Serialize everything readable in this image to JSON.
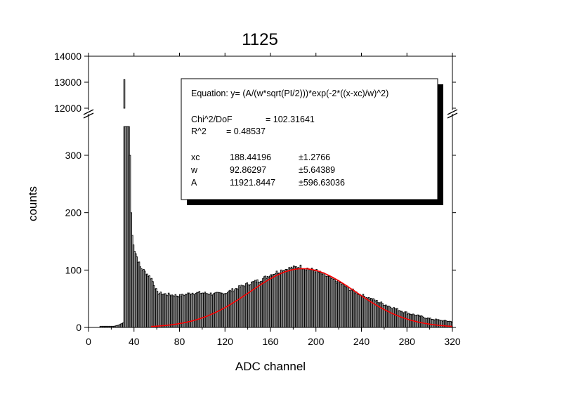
{
  "chart_data": {
    "type": "bar",
    "title": "1125",
    "title_color": "#ff0000",
    "xlabel": "ADC channel",
    "ylabel": "counts",
    "xlim": [
      0,
      320
    ],
    "x_ticks": [
      0,
      40,
      80,
      120,
      160,
      200,
      240,
      280,
      320
    ],
    "y_lower_range": [
      0,
      360
    ],
    "y_lower_ticks": [
      0,
      100,
      200,
      300
    ],
    "y_upper_range": [
      12000,
      14000
    ],
    "y_upper_ticks": [
      12000,
      13000,
      14000
    ],
    "axis_break": true,
    "bar_color": "#000000",
    "bar_fill": "#d9d9d9",
    "fit_color": "#ff0000",
    "histogram": {
      "bin_width": 1,
      "x": [
        20,
        22,
        24,
        26,
        28,
        30,
        31,
        32,
        33,
        34,
        35,
        36,
        37,
        38,
        40,
        45,
        50,
        55,
        60,
        70,
        80,
        90,
        100,
        110,
        120,
        130,
        140,
        150,
        160,
        170,
        180,
        185,
        190,
        200,
        210,
        220,
        230,
        240,
        250,
        260,
        270,
        280,
        290,
        300,
        310,
        320
      ],
      "counts": [
        2,
        2,
        3,
        4,
        6,
        8,
        13100,
        3500,
        3500,
        3500,
        3500,
        300,
        200,
        160,
        135,
        105,
        95,
        85,
        60,
        57,
        55,
        60,
        60,
        58,
        60,
        68,
        76,
        82,
        92,
        100,
        104,
        106,
        104,
        98,
        88,
        78,
        66,
        56,
        48,
        40,
        32,
        25,
        20,
        15,
        12,
        10
      ]
    },
    "fit": {
      "equation": "Equation: y= (A/(w*sqrt(PI/2)))*exp(-2*((x-xc)/w)^2)",
      "chi2_label": "Chi^2/DoF",
      "chi2_value": "= 102.31641",
      "r2_label": "R^2",
      "r2_value": "=  0.48537",
      "params": [
        {
          "name": "xc",
          "value": "188.44196",
          "error": "±1.2766"
        },
        {
          "name": "w",
          "value": "92.86297",
          "error": "±5.64389"
        },
        {
          "name": "A",
          "value": "11921.8447",
          "error": "±596.63036"
        }
      ],
      "xc": 188.44196,
      "w": 92.86297,
      "A": 11921.8447
    }
  }
}
